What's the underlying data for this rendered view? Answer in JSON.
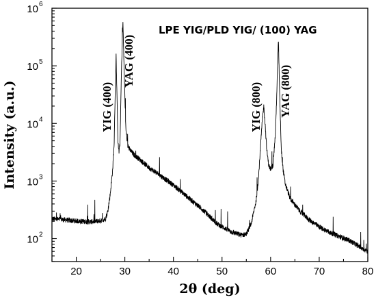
{
  "chart_data": {
    "type": "line",
    "title": "LPE YIG/PLD YIG/ (100) YAG",
    "xlabel": "2θ (deg)",
    "ylabel": "Intensity (a.u.)",
    "xlim": [
      15,
      80
    ],
    "ylim": [
      40,
      1000000
    ],
    "yscale": "log",
    "grid": false,
    "x_ticks": [
      "20",
      "30",
      "40",
      "50",
      "60",
      "70",
      "80"
    ],
    "y_ticks": [
      {
        "base": "10",
        "exp": "2"
      },
      {
        "base": "10",
        "exp": "3"
      },
      {
        "base": "10",
        "exp": "4"
      },
      {
        "base": "10",
        "exp": "5"
      },
      {
        "base": "10",
        "exp": "6"
      }
    ],
    "annotations": [
      {
        "text": "YIG (400)",
        "x": 28.2
      },
      {
        "text": "YAG (400)",
        "x": 29.6
      },
      {
        "text": "YIG (800)",
        "x": 58.6
      },
      {
        "text": "YAG (800)",
        "x": 61.6
      }
    ],
    "series": [
      {
        "x": [
          15,
          17,
          19,
          21,
          23,
          25,
          26,
          26.5,
          27,
          27.5,
          27.8,
          28.0,
          28.2,
          28.4,
          28.6,
          28.8,
          29.0,
          29.3,
          29.6,
          29.9,
          30.2,
          30.6,
          31,
          32,
          33,
          35,
          37,
          40,
          43,
          46,
          49,
          52,
          54,
          55,
          56,
          57,
          57.5,
          58,
          58.3,
          58.6,
          58.9,
          59.2,
          59.6,
          60,
          60.5,
          61,
          61.3,
          61.6,
          61.9,
          62.2,
          62.6,
          63,
          64,
          66,
          68,
          70,
          72,
          74,
          76,
          78,
          80
        ],
        "y": [
          220,
          215,
          205,
          200,
          195,
          205,
          220,
          300,
          600,
          1600,
          4500,
          30000,
          150000,
          25000,
          4500,
          3200,
          4500,
          80000,
          600000,
          60000,
          8000,
          4200,
          3500,
          2800,
          2400,
          1700,
          1300,
          850,
          520,
          320,
          180,
          130,
          115,
          120,
          180,
          450,
          1100,
          5000,
          12000,
          20000,
          9000,
          3500,
          1900,
          1600,
          1900,
          7000,
          40000,
          300000,
          25000,
          3500,
          1500,
          900,
          500,
          300,
          210,
          160,
          130,
          110,
          95,
          75,
          60
        ]
      }
    ]
  }
}
